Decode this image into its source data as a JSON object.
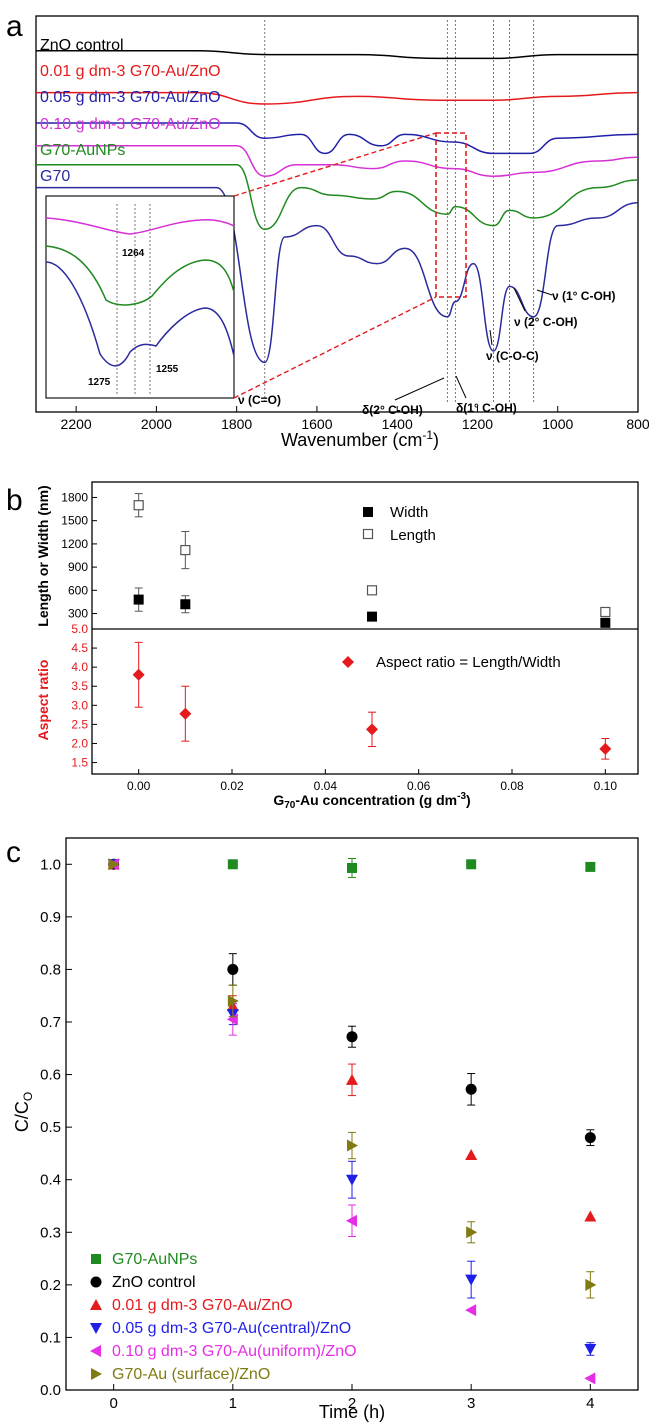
{
  "panel_a": {
    "letter": "a",
    "xlabel": "Wavenumber (cm",
    "xlabel_sup": "-1",
    "xlabel_tail": ")",
    "legend": [
      {
        "text": "ZnO control",
        "color": "#000000"
      },
      {
        "text": "0.01 g dm-3 G70-Au/ZnO",
        "color": "#e41a1c"
      },
      {
        "text": "0.05 g dm-3 G70-Au/ZnO",
        "color": "#1f1fa8"
      },
      {
        "text": "0.10 g dm-3 G70-Au/ZnO",
        "color": "#d62fd6"
      },
      {
        "text": "G70-AuNPs",
        "color": "#1f8a1f"
      },
      {
        "text": "G70",
        "color": "#2b2b9e"
      }
    ],
    "peak_labels": {
      "co": "ν (C=O)",
      "d2": "δ(2° C-OH)",
      "d1": "δ(1° C-OH)",
      "coc": "ν (C-O-C)",
      "n2": "ν (2° C-OH)",
      "n1": "ν (1° C-OH)"
    },
    "inset_labels": {
      "p1264": "1264",
      "p1275": "1275",
      "p1255": "1255"
    }
  },
  "chart_data": [
    {
      "type": "line",
      "panel": "a",
      "xlabel": "Wavenumber (cm-1)",
      "xlim": [
        2300,
        800
      ],
      "xticks": [
        2200,
        2000,
        1800,
        1600,
        1400,
        1200,
        1000,
        800
      ],
      "marked_wavenumbers": [
        1730,
        1275,
        1255,
        1160,
        1120,
        1060
      ],
      "series": [
        {
          "name": "ZnO control",
          "color": "#000000",
          "points": [
            [
              2300,
              0.06
            ],
            [
              1900,
              0.06
            ],
            [
              1720,
              0.07
            ],
            [
              1500,
              0.07
            ],
            [
              1300,
              0.08
            ],
            [
              1160,
              0.08
            ],
            [
              1000,
              0.07
            ],
            [
              800,
              0.07
            ]
          ]
        },
        {
          "name": "0.01 g dm-3 G70-Au/ZnO",
          "color": "#e41a1c",
          "points": [
            [
              2300,
              0.17
            ],
            [
              1900,
              0.17
            ],
            [
              1730,
              0.2
            ],
            [
              1500,
              0.18
            ],
            [
              1300,
              0.19
            ],
            [
              1160,
              0.19
            ],
            [
              1000,
              0.18
            ],
            [
              800,
              0.17
            ]
          ]
        },
        {
          "name": "0.05 g dm-3 G70-Au/ZnO",
          "color": "#1f1fa8",
          "points": [
            [
              2300,
              0.25
            ],
            [
              1800,
              0.25
            ],
            [
              1730,
              0.29
            ],
            [
              1640,
              0.28
            ],
            [
              1580,
              0.33
            ],
            [
              1520,
              0.28
            ],
            [
              1440,
              0.31
            ],
            [
              1380,
              0.28
            ],
            [
              1260,
              0.3
            ],
            [
              1160,
              0.33
            ],
            [
              1070,
              0.33
            ],
            [
              1000,
              0.29
            ],
            [
              800,
              0.28
            ]
          ]
        },
        {
          "name": "0.10 g dm-3 G70-Au/ZnO",
          "color": "#d62fd6",
          "points": [
            [
              2300,
              0.31
            ],
            [
              1800,
              0.31
            ],
            [
              1730,
              0.39
            ],
            [
              1650,
              0.36
            ],
            [
              1560,
              0.36
            ],
            [
              1460,
              0.37
            ],
            [
              1380,
              0.35
            ],
            [
              1260,
              0.37
            ],
            [
              1160,
              0.39
            ],
            [
              1060,
              0.38
            ],
            [
              900,
              0.35
            ],
            [
              800,
              0.34
            ]
          ]
        },
        {
          "name": "G70-AuNPs",
          "color": "#1f8a1f",
          "points": [
            [
              2300,
              0.36
            ],
            [
              1800,
              0.36
            ],
            [
              1730,
              0.53
            ],
            [
              1640,
              0.42
            ],
            [
              1560,
              0.44
            ],
            [
              1460,
              0.45
            ],
            [
              1400,
              0.43
            ],
            [
              1275,
              0.49
            ],
            [
              1255,
              0.47
            ],
            [
              1160,
              0.52
            ],
            [
              1120,
              0.48
            ],
            [
              1060,
              0.5
            ],
            [
              900,
              0.42
            ],
            [
              800,
              0.4
            ]
          ]
        },
        {
          "name": "G70",
          "color": "#2b2b9e",
          "points": [
            [
              2300,
              0.42
            ],
            [
              1850,
              0.42
            ],
            [
              1730,
              0.88
            ],
            [
              1680,
              0.55
            ],
            [
              1600,
              0.52
            ],
            [
              1520,
              0.6
            ],
            [
              1450,
              0.62
            ],
            [
              1380,
              0.58
            ],
            [
              1275,
              0.76
            ],
            [
              1255,
              0.72
            ],
            [
              1210,
              0.62
            ],
            [
              1160,
              0.85
            ],
            [
              1120,
              0.68
            ],
            [
              1060,
              0.76
            ],
            [
              1000,
              0.52
            ],
            [
              900,
              0.5
            ],
            [
              800,
              0.46
            ]
          ]
        }
      ]
    },
    {
      "type": "scatter",
      "panel": "b-top",
      "ylabel": "Length or Width (nm)",
      "ylim": [
        100,
        2000
      ],
      "yticks": [
        300,
        600,
        900,
        1200,
        1500,
        1800
      ],
      "xlim": [
        -0.01,
        0.107
      ],
      "series": [
        {
          "name": "Width",
          "marker": "filled-square",
          "color": "#000000",
          "x": [
            0.0,
            0.01,
            0.05,
            0.1
          ],
          "y": [
            480,
            420,
            260,
            180
          ],
          "err": [
            150,
            110,
            20,
            15
          ]
        },
        {
          "name": "Length",
          "marker": "open-square",
          "color": "#000000",
          "x": [
            0.0,
            0.01,
            0.05,
            0.1
          ],
          "y": [
            1700,
            1120,
            600,
            320
          ],
          "err": [
            150,
            240,
            50,
            25
          ]
        }
      ]
    },
    {
      "type": "scatter",
      "panel": "b-bottom",
      "xlabel": "G70-Au concentration (g dm-3)",
      "ylabel": "Aspect ratio",
      "ylim": [
        1.2,
        5.0
      ],
      "yticks": [
        1.5,
        2.0,
        2.5,
        3.0,
        3.5,
        4.0,
        4.5,
        5.0
      ],
      "xlim": [
        -0.01,
        0.107
      ],
      "xticks": [
        0.0,
        0.02,
        0.04,
        0.06,
        0.08,
        0.1
      ],
      "series": [
        {
          "name": "Aspect ratio = Length/Width",
          "marker": "diamond",
          "color": "#e41a1c",
          "x": [
            0.0,
            0.01,
            0.05,
            0.1
          ],
          "y": [
            3.8,
            2.78,
            2.37,
            1.86
          ],
          "err": [
            0.85,
            0.72,
            0.45,
            0.27
          ]
        }
      ]
    },
    {
      "type": "scatter",
      "panel": "c",
      "xlabel": "Time (h)",
      "ylabel": "C/Co",
      "xlim": [
        -0.4,
        4.4
      ],
      "ylim": [
        0.0,
        1.05
      ],
      "xticks": [
        0,
        1,
        2,
        3,
        4
      ],
      "yticks": [
        0.0,
        0.1,
        0.2,
        0.3,
        0.4,
        0.5,
        0.6,
        0.7,
        0.8,
        0.9,
        1.0
      ],
      "series": [
        {
          "name": "G70-AuNPs",
          "marker": "square",
          "color": "#1f8a1f",
          "x": [
            0,
            1,
            2,
            3,
            4
          ],
          "y": [
            1.0,
            1.0,
            0.993,
            1.0,
            0.995
          ],
          "err": [
            0,
            0,
            0.018,
            0,
            0
          ]
        },
        {
          "name": "ZnO control",
          "marker": "circle",
          "color": "#000000",
          "x": [
            0,
            1,
            2,
            3,
            4
          ],
          "y": [
            1.0,
            0.8,
            0.672,
            0.572,
            0.48
          ],
          "err": [
            0,
            0.03,
            0.02,
            0.03,
            0.015
          ]
        },
        {
          "name": "0.01 g dm-3 G70-Au/ZnO",
          "marker": "triangle-up",
          "color": "#e41a1c",
          "x": [
            0,
            1,
            2,
            3,
            4
          ],
          "y": [
            1.0,
            0.73,
            0.59,
            0.447,
            0.33
          ],
          "err": [
            0,
            0.02,
            0.03,
            0,
            0
          ]
        },
        {
          "name": "0.05 g dm-3 G70-Au(central)/ZnO",
          "marker": "triangle-down",
          "color": "#1f1fe8",
          "x": [
            0,
            1,
            2,
            3,
            4
          ],
          "y": [
            1.0,
            0.715,
            0.4,
            0.21,
            0.078
          ],
          "err": [
            0,
            0.02,
            0.035,
            0.035,
            0.012
          ]
        },
        {
          "name": "0.10 g dm-3 G70-Au(uniform)/ZnO",
          "marker": "triangle-left",
          "color": "#e52ee5",
          "x": [
            0,
            1,
            2,
            3,
            4
          ],
          "y": [
            1.0,
            0.705,
            0.322,
            0.152,
            0.022
          ],
          "err": [
            0,
            0.03,
            0.03,
            0,
            0
          ]
        },
        {
          "name": "G70-Au (surface)/ZnO",
          "marker": "triangle-right",
          "color": "#807a12",
          "x": [
            0,
            1,
            2,
            3,
            4
          ],
          "y": [
            1.0,
            0.74,
            0.465,
            0.3,
            0.2
          ],
          "err": [
            0,
            0.03,
            0.025,
            0.02,
            0.025
          ]
        }
      ]
    }
  ],
  "panel_b": {
    "letter": "b",
    "ylabel_top": "Length or Width (nm)",
    "ylabel_bottom": "Aspect ratio",
    "xlabel_main": "G",
    "xlabel_sub": "70",
    "xlabel_rest": "-Au concentration (g dm",
    "xlabel_sup": "-3",
    "xlabel_tail": ")",
    "legend_width": "Width",
    "legend_length": "Length",
    "legend_ratio": "Aspect ratio = Length/Width"
  },
  "panel_c": {
    "letter": "c",
    "ylabel_main": "C/C",
    "ylabel_sub": "O",
    "xlabel": "Time (h)"
  }
}
